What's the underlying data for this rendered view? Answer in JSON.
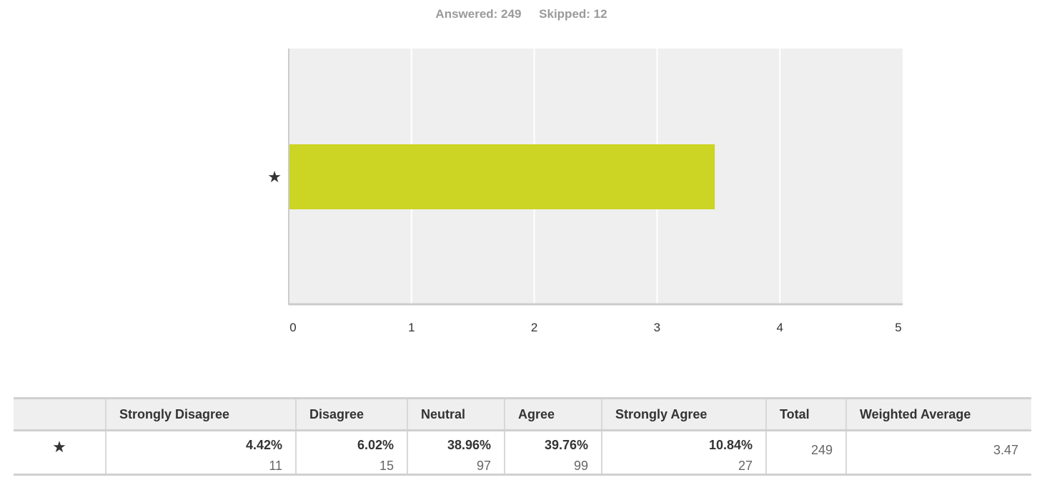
{
  "summary": {
    "answered": "Answered: 249",
    "skipped": "Skipped: 12"
  },
  "chart_data": {
    "type": "bar",
    "orientation": "horizontal",
    "categories": [
      "★"
    ],
    "values": [
      3.47
    ],
    "xlim": [
      0,
      5
    ],
    "x_ticks": [
      "0",
      "1",
      "2",
      "3",
      "4",
      "5"
    ],
    "grid": true,
    "colors": {
      "bar": "#ccd424",
      "plot_background": "#efefef",
      "grid": "#ffffff",
      "axis": "#cccccc"
    }
  },
  "table": {
    "headers": [
      "",
      "Strongly Disagree",
      "Disagree",
      "Neutral",
      "Agree",
      "Strongly Agree",
      "Total",
      "Weighted Average"
    ],
    "row": {
      "label": "★",
      "cells": [
        {
          "pct": "4.42%",
          "count": "11"
        },
        {
          "pct": "6.02%",
          "count": "15"
        },
        {
          "pct": "38.96%",
          "count": "97"
        },
        {
          "pct": "39.76%",
          "count": "99"
        },
        {
          "pct": "10.84%",
          "count": "27"
        }
      ],
      "total": "249",
      "weighted_average": "3.47"
    }
  }
}
